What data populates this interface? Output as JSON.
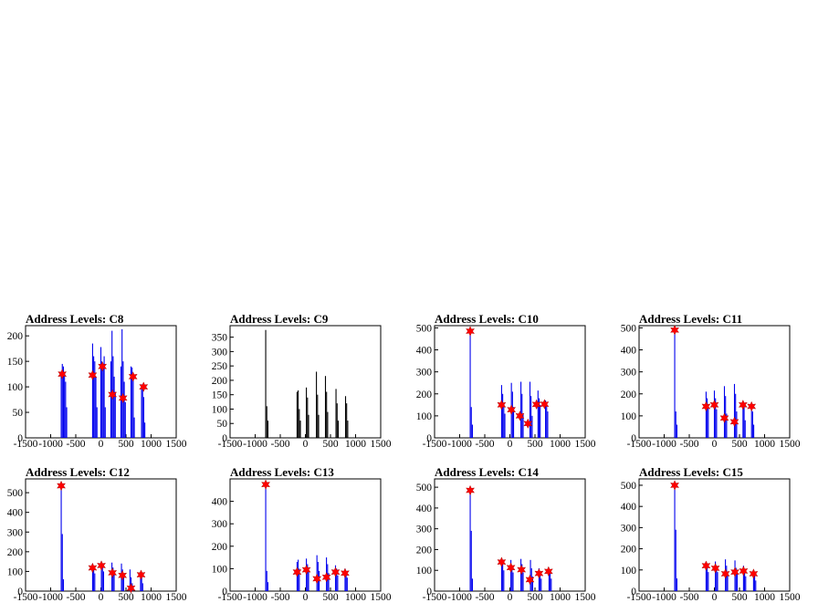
{
  "colors": {
    "blue": "#0000ee",
    "black": "#000000",
    "marker": "#ff0000"
  },
  "chart_data": [
    {
      "type": "bar",
      "title": "Address Levels: C8",
      "bar_color": "blue",
      "xlim": [
        -1500,
        1500
      ],
      "ylim": [
        0,
        220
      ],
      "xticks": [
        "-1500",
        "-1000",
        "-500",
        "0",
        "500",
        "1000",
        "1500"
      ],
      "yticks": [
        0,
        50,
        100,
        150,
        200
      ],
      "peaks": [
        {
          "x": -790,
          "h": [
            130,
            145,
            140,
            128,
            110,
            60
          ]
        },
        {
          "x": -165,
          "h": [
            185,
            160,
            150,
            120,
            60
          ]
        },
        {
          "x": 0,
          "h": [
            178,
            150,
            140,
            160,
            60
          ]
        },
        {
          "x": 200,
          "h": [
            150,
            210,
            160,
            120,
            90
          ]
        },
        {
          "x": 400,
          "h": [
            140,
            213,
            150,
            110,
            70
          ]
        },
        {
          "x": 600,
          "h": [
            140,
            138,
            120,
            40
          ]
        },
        {
          "x": 810,
          "h": [
            105,
            95,
            80,
            30
          ]
        }
      ],
      "markers": [
        {
          "x": -770,
          "y": 125
        },
        {
          "x": -165,
          "y": 123
        },
        {
          "x": 30,
          "y": 140
        },
        {
          "x": 230,
          "y": 85
        },
        {
          "x": 440,
          "y": 78
        },
        {
          "x": 640,
          "y": 120
        },
        {
          "x": 850,
          "y": 100
        }
      ]
    },
    {
      "type": "bar",
      "title": "Address Levels: C9",
      "bar_color": "black",
      "xlim": [
        -1500,
        1500
      ],
      "ylim": [
        0,
        390
      ],
      "xticks": [
        "-1500",
        "-1000",
        "-500",
        "0",
        "500",
        "1000",
        "1500"
      ],
      "yticks": [
        0,
        50,
        100,
        150,
        200,
        250,
        300,
        350
      ],
      "peaks": [
        {
          "x": -790,
          "h": [
            375,
            110,
            60
          ]
        },
        {
          "x": -165,
          "h": [
            160,
            165,
            100,
            60
          ]
        },
        {
          "x": 20,
          "h": [
            175,
            140,
            80
          ]
        },
        {
          "x": 220,
          "h": [
            230,
            150,
            80
          ]
        },
        {
          "x": 400,
          "h": [
            215,
            160,
            90
          ]
        },
        {
          "x": 610,
          "h": [
            170,
            120,
            60
          ]
        },
        {
          "x": 800,
          "h": [
            145,
            120,
            60
          ]
        }
      ],
      "markers": []
    },
    {
      "type": "bar",
      "title": "Address Levels: C10",
      "bar_color": "blue",
      "xlim": [
        -1500,
        1500
      ],
      "ylim": [
        0,
        510
      ],
      "xticks": [
        "-1500",
        "-1000",
        "-500",
        "0",
        "500",
        "1000",
        "1500"
      ],
      "yticks": [
        0,
        100,
        200,
        300,
        400,
        500
      ],
      "peaks": [
        {
          "x": -790,
          "h": [
            485,
            140,
            60
          ]
        },
        {
          "x": -165,
          "h": [
            240,
            200,
            160,
            110
          ]
        },
        {
          "x": 30,
          "h": [
            250,
            210,
            140
          ]
        },
        {
          "x": 220,
          "h": [
            255,
            200,
            110
          ]
        },
        {
          "x": 400,
          "h": [
            255,
            190,
            100
          ]
        },
        {
          "x": 560,
          "h": [
            215,
            180,
            150
          ]
        },
        {
          "x": 710,
          "h": [
            170,
            150,
            120
          ]
        }
      ],
      "markers": [
        {
          "x": -790,
          "y": 485
        },
        {
          "x": -165,
          "y": 150
        },
        {
          "x": 30,
          "y": 128
        },
        {
          "x": 200,
          "y": 100
        },
        {
          "x": 360,
          "y": 65
        },
        {
          "x": 530,
          "y": 152
        },
        {
          "x": 690,
          "y": 153
        }
      ]
    },
    {
      "type": "bar",
      "title": "Address Levels: C11",
      "bar_color": "blue",
      "xlim": [
        -1500,
        1500
      ],
      "ylim": [
        0,
        510
      ],
      "xticks": [
        "-1500",
        "-1000",
        "-500",
        "0",
        "500",
        "1000",
        "1500"
      ],
      "yticks": [
        0,
        100,
        200,
        300,
        400,
        500
      ],
      "peaks": [
        {
          "x": -790,
          "h": [
            490,
            120,
            60
          ]
        },
        {
          "x": -165,
          "h": [
            210,
            180,
            140
          ]
        },
        {
          "x": 0,
          "h": [
            215,
            180,
            130
          ]
        },
        {
          "x": 200,
          "h": [
            235,
            190,
            110
          ]
        },
        {
          "x": 400,
          "h": [
            245,
            200,
            120
          ]
        },
        {
          "x": 570,
          "h": [
            160,
            140,
            80
          ]
        },
        {
          "x": 740,
          "h": [
            145,
            120,
            60
          ]
        }
      ],
      "markers": [
        {
          "x": -790,
          "y": 490
        },
        {
          "x": -165,
          "y": 143
        },
        {
          "x": 0,
          "y": 150
        },
        {
          "x": 200,
          "y": 90
        },
        {
          "x": 400,
          "y": 73
        },
        {
          "x": 570,
          "y": 150
        },
        {
          "x": 740,
          "y": 143
        }
      ]
    },
    {
      "type": "bar",
      "title": "Address Levels: C12",
      "bar_color": "blue",
      "xlim": [
        -1500,
        1500
      ],
      "ylim": [
        0,
        570
      ],
      "xticks": [
        "-1500",
        "-1000",
        "-500",
        "0",
        "500",
        "1000",
        "1500"
      ],
      "yticks": [
        0,
        100,
        200,
        300,
        400,
        500
      ],
      "peaks": [
        {
          "x": -790,
          "h": [
            535,
            290,
            60
          ]
        },
        {
          "x": -165,
          "h": [
            140,
            120,
            90
          ]
        },
        {
          "x": 10,
          "h": [
            150,
            130,
            100
          ]
        },
        {
          "x": 220,
          "h": [
            145,
            120,
            90
          ]
        },
        {
          "x": 410,
          "h": [
            140,
            110,
            80
          ]
        },
        {
          "x": 580,
          "h": [
            110,
            70,
            40
          ]
        },
        {
          "x": 790,
          "h": [
            95,
            80,
            40
          ]
        }
      ],
      "markers": [
        {
          "x": -790,
          "y": 535
        },
        {
          "x": -165,
          "y": 118
        },
        {
          "x": 10,
          "y": 130
        },
        {
          "x": 230,
          "y": 93
        },
        {
          "x": 430,
          "y": 80
        },
        {
          "x": 600,
          "y": 15
        },
        {
          "x": 800,
          "y": 83
        }
      ]
    },
    {
      "type": "bar",
      "title": "Address Levels: C13",
      "bar_color": "blue",
      "xlim": [
        -1500,
        1500
      ],
      "ylim": [
        0,
        500
      ],
      "xticks": [
        "-1500",
        "-1000",
        "-500",
        "0",
        "500",
        "1000",
        "1500"
      ],
      "yticks": [
        0,
        100,
        200,
        300,
        400
      ],
      "peaks": [
        {
          "x": -790,
          "h": [
            475,
            90,
            40
          ]
        },
        {
          "x": -165,
          "h": [
            130,
            140,
            100
          ]
        },
        {
          "x": 20,
          "h": [
            145,
            120,
            90
          ]
        },
        {
          "x": 230,
          "h": [
            160,
            130,
            90
          ]
        },
        {
          "x": 420,
          "h": [
            150,
            120,
            80
          ]
        },
        {
          "x": 600,
          "h": [
            115,
            100,
            70
          ]
        },
        {
          "x": 790,
          "h": [
            100,
            85,
            60
          ]
        }
      ],
      "markers": [
        {
          "x": -790,
          "y": 475
        },
        {
          "x": -165,
          "y": 85
        },
        {
          "x": 20,
          "y": 95
        },
        {
          "x": 230,
          "y": 55
        },
        {
          "x": 420,
          "y": 62
        },
        {
          "x": 600,
          "y": 85
        },
        {
          "x": 790,
          "y": 80
        }
      ]
    },
    {
      "type": "bar",
      "title": "Address Levels: C14",
      "bar_color": "blue",
      "xlim": [
        -1500,
        1500
      ],
      "ylim": [
        0,
        540
      ],
      "xticks": [
        "-1500",
        "-1000",
        "-500",
        "0",
        "500",
        "1000",
        "1500"
      ],
      "yticks": [
        0,
        100,
        200,
        300,
        400,
        500
      ],
      "peaks": [
        {
          "x": -790,
          "h": [
            485,
            290,
            60
          ]
        },
        {
          "x": -165,
          "h": [
            145,
            130,
            100
          ]
        },
        {
          "x": 20,
          "h": [
            150,
            120,
            90
          ]
        },
        {
          "x": 220,
          "h": [
            155,
            130,
            90
          ]
        },
        {
          "x": 410,
          "h": [
            150,
            110,
            70
          ]
        },
        {
          "x": 580,
          "h": [
            110,
            90,
            60
          ]
        },
        {
          "x": 780,
          "h": [
            100,
            90,
            60
          ]
        }
      ],
      "markers": [
        {
          "x": -790,
          "y": 485
        },
        {
          "x": -165,
          "y": 140
        },
        {
          "x": 20,
          "y": 113
        },
        {
          "x": 230,
          "y": 103
        },
        {
          "x": 400,
          "y": 55
        },
        {
          "x": 580,
          "y": 85
        },
        {
          "x": 770,
          "y": 95
        }
      ]
    },
    {
      "type": "bar",
      "title": "Address Levels: C15",
      "bar_color": "blue",
      "xlim": [
        -1500,
        1500
      ],
      "ylim": [
        0,
        530
      ],
      "xticks": [
        "-1500",
        "-1000",
        "-500",
        "0",
        "500",
        "1000",
        "1500"
      ],
      "yticks": [
        0,
        100,
        200,
        300,
        400,
        500
      ],
      "peaks": [
        {
          "x": -790,
          "h": [
            500,
            290,
            60
          ]
        },
        {
          "x": -165,
          "h": [
            135,
            120,
            90
          ]
        },
        {
          "x": 20,
          "h": [
            140,
            120,
            90
          ]
        },
        {
          "x": 220,
          "h": [
            150,
            120,
            80
          ]
        },
        {
          "x": 410,
          "h": [
            145,
            110,
            80
          ]
        },
        {
          "x": 580,
          "h": [
            120,
            100,
            70
          ]
        },
        {
          "x": 780,
          "h": [
            95,
            80,
            50
          ]
        }
      ],
      "markers": [
        {
          "x": -790,
          "y": 500
        },
        {
          "x": -165,
          "y": 120
        },
        {
          "x": 20,
          "y": 108
        },
        {
          "x": 220,
          "y": 82
        },
        {
          "x": 410,
          "y": 90
        },
        {
          "x": 580,
          "y": 95
        },
        {
          "x": 780,
          "y": 82
        }
      ]
    }
  ]
}
